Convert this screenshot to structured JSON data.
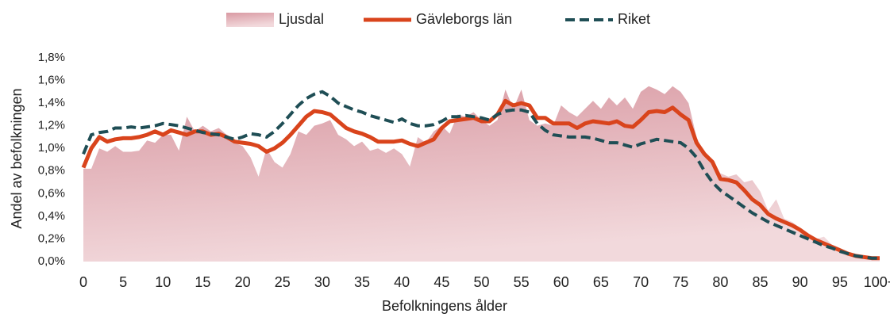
{
  "chart_data": {
    "type": "line",
    "xlabel": "Befolkningens ålder",
    "ylabel": "Andel av befolkningen",
    "legend": "top",
    "categories": [
      "0",
      null,
      null,
      null,
      null,
      "5",
      null,
      null,
      null,
      null,
      "10",
      null,
      null,
      null,
      null,
      "15",
      null,
      null,
      null,
      null,
      "20",
      null,
      null,
      null,
      null,
      "25",
      null,
      null,
      null,
      null,
      "30",
      null,
      null,
      null,
      null,
      "35",
      null,
      null,
      null,
      null,
      "40",
      null,
      null,
      null,
      null,
      "45",
      null,
      null,
      null,
      null,
      "50",
      null,
      null,
      null,
      null,
      "55",
      null,
      null,
      null,
      null,
      "60",
      null,
      null,
      null,
      null,
      "65",
      null,
      null,
      null,
      null,
      "70",
      null,
      null,
      null,
      null,
      "75",
      null,
      null,
      null,
      null,
      "80",
      null,
      null,
      null,
      null,
      "85",
      null,
      null,
      null,
      null,
      "90",
      null,
      null,
      null,
      null,
      "95",
      null,
      null,
      null,
      null,
      "100+"
    ],
    "ylim": [
      0,
      1.8
    ],
    "yticks": [
      {
        "value": 0,
        "label": "0,0%"
      },
      {
        "value": 0.2,
        "label": "0,2%"
      },
      {
        "value": 0.4,
        "label": "0,4%"
      },
      {
        "value": 0.6,
        "label": "0,6%"
      },
      {
        "value": 0.8,
        "label": "0,8%"
      },
      {
        "value": 1.0,
        "label": "1,0%"
      },
      {
        "value": 1.2,
        "label": "1,2%"
      },
      {
        "value": 1.4,
        "label": "1,4%"
      },
      {
        "value": 1.6,
        "label": "1,6%"
      },
      {
        "value": 1.8,
        "label": "1,8%"
      }
    ],
    "series": [
      {
        "name": "Ljusdal",
        "kind": "area",
        "color": "#d99aa3",
        "values": [
          0.82,
          0.82,
          1.0,
          0.97,
          1.02,
          0.97,
          0.97,
          0.98,
          1.07,
          1.05,
          1.12,
          1.12,
          0.98,
          1.28,
          1.15,
          1.2,
          1.15,
          1.18,
          1.12,
          1.05,
          1.02,
          0.92,
          0.75,
          1.0,
          0.88,
          0.83,
          0.95,
          1.15,
          1.12,
          1.2,
          1.22,
          1.25,
          1.12,
          1.08,
          1.02,
          1.06,
          0.98,
          1.0,
          0.96,
          1.0,
          0.95,
          0.84,
          1.1,
          1.05,
          1.15,
          1.2,
          1.13,
          1.3,
          1.28,
          1.32,
          1.25,
          1.2,
          1.25,
          1.52,
          1.35,
          1.52,
          1.25,
          1.2,
          1.22,
          1.2,
          1.38,
          1.32,
          1.28,
          1.35,
          1.42,
          1.35,
          1.45,
          1.38,
          1.45,
          1.35,
          1.5,
          1.55,
          1.52,
          1.48,
          1.55,
          1.5,
          1.4,
          1.1,
          0.95,
          0.88,
          0.78,
          0.75,
          0.77,
          0.7,
          0.72,
          0.62,
          0.45,
          0.55,
          0.38,
          0.35,
          0.3,
          0.25,
          0.2,
          0.22,
          0.15,
          0.12,
          0.08,
          0.06,
          0.04,
          0.03,
          0.04
        ]
      },
      {
        "name": "Gävleborgs län",
        "kind": "line",
        "color": "#d9441c",
        "values": [
          0.83,
          1.0,
          1.1,
          1.06,
          1.08,
          1.09,
          1.09,
          1.1,
          1.12,
          1.15,
          1.12,
          1.16,
          1.14,
          1.12,
          1.15,
          1.15,
          1.12,
          1.13,
          1.1,
          1.06,
          1.05,
          1.04,
          1.02,
          0.97,
          1.0,
          1.05,
          1.12,
          1.2,
          1.28,
          1.33,
          1.32,
          1.3,
          1.24,
          1.18,
          1.15,
          1.13,
          1.1,
          1.06,
          1.06,
          1.06,
          1.07,
          1.04,
          1.02,
          1.05,
          1.08,
          1.18,
          1.24,
          1.25,
          1.26,
          1.27,
          1.24,
          1.24,
          1.3,
          1.42,
          1.38,
          1.4,
          1.38,
          1.27,
          1.27,
          1.22,
          1.22,
          1.22,
          1.18,
          1.22,
          1.24,
          1.23,
          1.22,
          1.24,
          1.2,
          1.19,
          1.25,
          1.32,
          1.33,
          1.32,
          1.36,
          1.3,
          1.25,
          1.05,
          0.95,
          0.88,
          0.73,
          0.72,
          0.7,
          0.63,
          0.55,
          0.5,
          0.42,
          0.38,
          0.35,
          0.32,
          0.28,
          0.23,
          0.19,
          0.16,
          0.13,
          0.1,
          0.07,
          0.05,
          0.04,
          0.03,
          0.03
        ]
      },
      {
        "name": "Riket",
        "kind": "dashed",
        "color": "#1f4e55",
        "values": [
          0.95,
          1.12,
          1.14,
          1.15,
          1.18,
          1.18,
          1.19,
          1.18,
          1.19,
          1.2,
          1.22,
          1.21,
          1.2,
          1.18,
          1.16,
          1.14,
          1.13,
          1.12,
          1.1,
          1.08,
          1.1,
          1.13,
          1.12,
          1.1,
          1.15,
          1.22,
          1.3,
          1.38,
          1.44,
          1.48,
          1.5,
          1.46,
          1.4,
          1.37,
          1.34,
          1.32,
          1.29,
          1.27,
          1.25,
          1.23,
          1.26,
          1.22,
          1.2,
          1.2,
          1.21,
          1.24,
          1.28,
          1.28,
          1.29,
          1.28,
          1.27,
          1.25,
          1.3,
          1.33,
          1.34,
          1.34,
          1.32,
          1.22,
          1.16,
          1.12,
          1.11,
          1.1,
          1.1,
          1.1,
          1.09,
          1.07,
          1.05,
          1.05,
          1.03,
          1.01,
          1.04,
          1.06,
          1.08,
          1.07,
          1.06,
          1.05,
          1.0,
          0.92,
          0.8,
          0.7,
          0.63,
          0.58,
          0.53,
          0.48,
          0.43,
          0.39,
          0.35,
          0.32,
          0.29,
          0.26,
          0.23,
          0.2,
          0.17,
          0.14,
          0.12,
          0.09,
          0.07,
          0.05,
          0.04,
          0.03,
          0.03
        ]
      }
    ]
  }
}
